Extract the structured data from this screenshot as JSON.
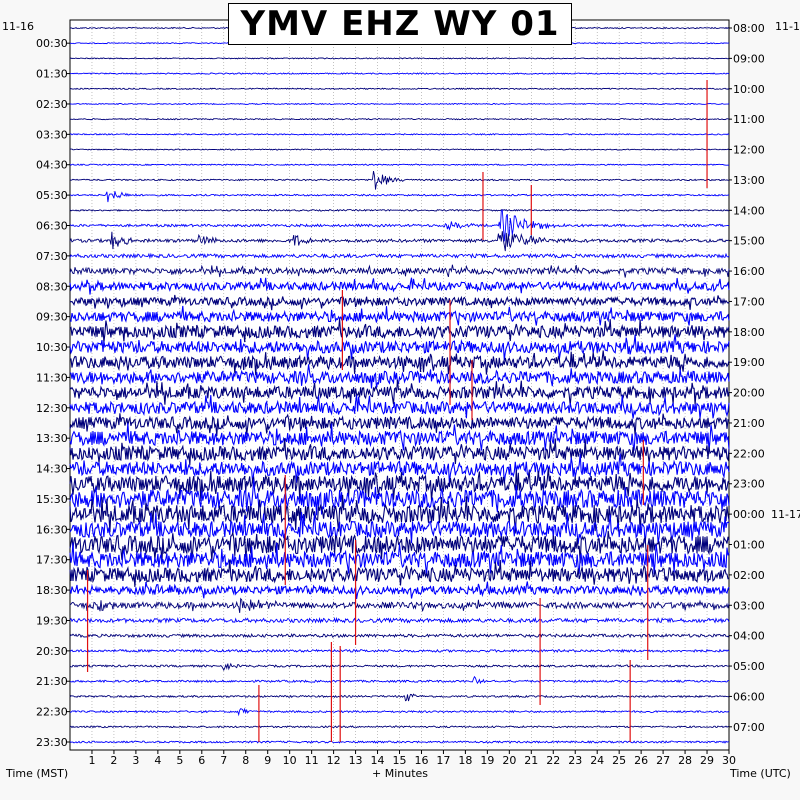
{
  "chart_data": {
    "type": "line",
    "title": "YMV EHZ WY 01",
    "date_left": "11-16",
    "date_right": "11-1",
    "date_right_marker": "11-17",
    "xlabel": "+ Minutes",
    "left_axis_label": "Time (MST)",
    "right_axis_label": "Time (UTC)",
    "x_ticks": [
      "1",
      "2",
      "3",
      "4",
      "5",
      "6",
      "7",
      "8",
      "9",
      "10",
      "11",
      "12",
      "13",
      "14",
      "15",
      "16",
      "17",
      "18",
      "19",
      "20",
      "21",
      "22",
      "23",
      "24",
      "25",
      "26",
      "27",
      "28",
      "29",
      "30"
    ],
    "xlim": [
      0,
      30
    ],
    "left_times": [
      "00:30",
      "01:30",
      "02:30",
      "03:30",
      "04:30",
      "05:30",
      "06:30",
      "07:30",
      "08:30",
      "09:30",
      "10:30",
      "11:30",
      "12:30",
      "13:30",
      "14:30",
      "15:30",
      "16:30",
      "17:30",
      "18:30",
      "19:30",
      "20:30",
      "21:30",
      "22:30",
      "23:30"
    ],
    "right_times": [
      "08:00",
      "09:00",
      "10:00",
      "11:00",
      "12:00",
      "13:00",
      "14:00",
      "15:00",
      "16:00",
      "17:00",
      "18:00",
      "19:00",
      "20:00",
      "21:00",
      "22:00",
      "23:00",
      "00:00",
      "01:00",
      "02:00",
      "03:00",
      "04:00",
      "05:00",
      "06:00",
      "07:00"
    ],
    "trace_count": 48,
    "trace_colors": [
      "#00007a",
      "#0000ff"
    ],
    "marker_color": "#e01010",
    "noise_levels": [
      0.6,
      0.5,
      0.5,
      0.6,
      0.6,
      0.5,
      0.6,
      0.6,
      0.5,
      0.6,
      0.7,
      0.8,
      0.7,
      1.2,
      1.6,
      1.8,
      3,
      4,
      4,
      5,
      6,
      6,
      6,
      6,
      6,
      6,
      6,
      7,
      7,
      7,
      8,
      9,
      9,
      8,
      9,
      8,
      7,
      4,
      3,
      2,
      1.5,
      1.2,
      1,
      1,
      0.9,
      0.9,
      0.8,
      0.9
    ],
    "events": [
      {
        "trace": 10,
        "minute": 13.8,
        "amp": 12,
        "dur": 0.6
      },
      {
        "trace": 11,
        "minute": 1.7,
        "amp": 9,
        "dur": 0.5
      },
      {
        "trace": 13,
        "minute": 17.1,
        "amp": 8,
        "dur": 0.6
      },
      {
        "trace": 13,
        "minute": 19.6,
        "amp": 18,
        "dur": 1.0
      },
      {
        "trace": 14,
        "minute": 1.9,
        "amp": 10,
        "dur": 0.5
      },
      {
        "trace": 14,
        "minute": 5.9,
        "amp": 9,
        "dur": 0.4
      },
      {
        "trace": 14,
        "minute": 10.2,
        "amp": 7,
        "dur": 0.4
      },
      {
        "trace": 14,
        "minute": 19.5,
        "amp": 14,
        "dur": 1.2
      },
      {
        "trace": 36,
        "minute": 25.4,
        "amp": 8,
        "dur": 0.6
      },
      {
        "trace": 37,
        "minute": 3.7,
        "amp": 9,
        "dur": 0.5
      },
      {
        "trace": 38,
        "minute": 1.1,
        "amp": 8,
        "dur": 0.4
      },
      {
        "trace": 38,
        "minute": 7.7,
        "amp": 10,
        "dur": 0.6
      },
      {
        "trace": 42,
        "minute": 7.0,
        "amp": 5,
        "dur": 0.3
      },
      {
        "trace": 43,
        "minute": 18.4,
        "amp": 5,
        "dur": 0.3
      },
      {
        "trace": 44,
        "minute": 15.3,
        "amp": 6,
        "dur": 0.3
      },
      {
        "trace": 45,
        "minute": 7.7,
        "amp": 5,
        "dur": 0.3
      }
    ],
    "markers": [
      {
        "minute": 29.0,
        "y0": 80,
        "y1": 188
      },
      {
        "minute": 18.8,
        "y0": 172,
        "y1": 240
      },
      {
        "minute": 21.0,
        "y0": 185,
        "y1": 235
      },
      {
        "minute": 12.4,
        "y0": 290,
        "y1": 370
      },
      {
        "minute": 17.3,
        "y0": 300,
        "y1": 405
      },
      {
        "minute": 18.3,
        "y0": 360,
        "y1": 420
      },
      {
        "minute": 26.1,
        "y0": 440,
        "y1": 505
      },
      {
        "minute": 9.8,
        "y0": 475,
        "y1": 585
      },
      {
        "minute": 13.0,
        "y0": 540,
        "y1": 645
      },
      {
        "minute": 26.3,
        "y0": 545,
        "y1": 660
      },
      {
        "minute": 0.8,
        "y0": 570,
        "y1": 672
      },
      {
        "minute": 21.4,
        "y0": 598,
        "y1": 705
      },
      {
        "minute": 25.5,
        "y0": 660,
        "y1": 742
      },
      {
        "minute": 11.9,
        "y0": 642,
        "y1": 742
      },
      {
        "minute": 12.3,
        "y0": 646,
        "y1": 742
      },
      {
        "minute": 8.6,
        "y0": 685,
        "y1": 742
      }
    ]
  }
}
